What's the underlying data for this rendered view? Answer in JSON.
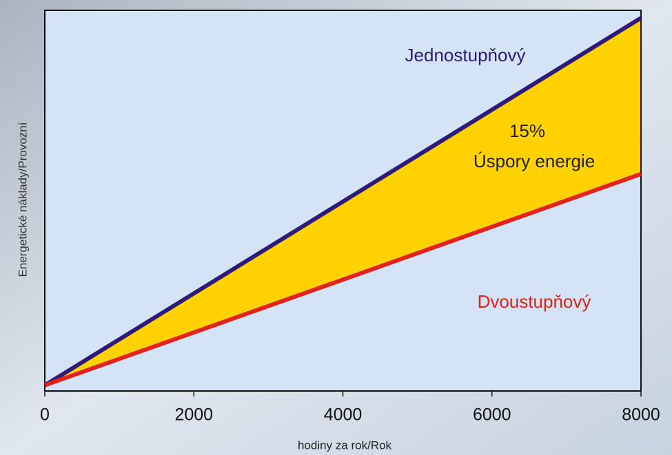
{
  "chart_data": {
    "type": "line",
    "x": [
      0,
      8000
    ],
    "series": [
      {
        "name": "Jednostupňový",
        "color": "#2e1a7a",
        "values": [
          1.5,
          98
        ]
      },
      {
        "name": "Dvoustupňový",
        "color": "#e2231a",
        "values": [
          1.5,
          57
        ]
      }
    ],
    "area_color": "#ffd200",
    "plot_background": "#d4e3f5",
    "annotations": [
      "15%",
      "Úspory energie"
    ],
    "x_label": "hodiny za rok/Rok",
    "y_label": "Energetické náklady/Provozní",
    "xlim": [
      0,
      8000
    ],
    "xticks": [
      0,
      2000,
      4000,
      6000,
      8000
    ],
    "ylim": [
      0,
      100
    ],
    "grid": false
  }
}
